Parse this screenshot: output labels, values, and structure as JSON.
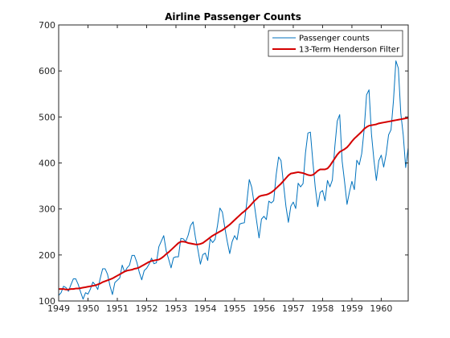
{
  "chart_data": {
    "type": "line",
    "title": "Airline Passenger Counts",
    "xlabel": "",
    "ylabel": "",
    "xlim": [
      1949,
      1960.92
    ],
    "ylim": [
      100,
      700
    ],
    "xticks": [
      1949,
      1950,
      1951,
      1952,
      1953,
      1954,
      1955,
      1956,
      1957,
      1958,
      1959,
      1960
    ],
    "yticks": [
      100,
      200,
      300,
      400,
      500,
      600,
      700
    ],
    "grid": false,
    "legend_position": "top-right",
    "x_start": 1949,
    "x_step_months": 1,
    "series": [
      {
        "name": "Passenger counts",
        "color": "#0072BD",
        "values": [
          112,
          118,
          132,
          129,
          121,
          135,
          148,
          148,
          136,
          119,
          104,
          118,
          115,
          126,
          141,
          135,
          125,
          149,
          170,
          170,
          158,
          133,
          114,
          140,
          145,
          150,
          178,
          163,
          172,
          178,
          199,
          199,
          184,
          162,
          146,
          166,
          171,
          180,
          193,
          181,
          183,
          218,
          230,
          242,
          209,
          191,
          172,
          194,
          196,
          196,
          236,
          235,
          229,
          243,
          264,
          272,
          237,
          211,
          180,
          201,
          204,
          188,
          235,
          227,
          234,
          264,
          302,
          293,
          259,
          229,
          203,
          229,
          242,
          233,
          267,
          269,
          270,
          315,
          364,
          347,
          312,
          274,
          237,
          278,
          284,
          277,
          317,
          313,
          318,
          374,
          413,
          405,
          355,
          306,
          271,
          306,
          315,
          301,
          356,
          348,
          355,
          422,
          465,
          467,
          404,
          347,
          305,
          336,
          340,
          318,
          362,
          348,
          363,
          435,
          491,
          505,
          404,
          359,
          310,
          337,
          360,
          342,
          406,
          396,
          420,
          472,
          548,
          559,
          463,
          407,
          362,
          405,
          417,
          391,
          419,
          461,
          472,
          535,
          622,
          606,
          508,
          461,
          390,
          432
        ]
      },
      {
        "name": "13-Term Henderson Filter",
        "color": "#D40000",
        "values": [
          126,
          126,
          126,
          125,
          125,
          126,
          126,
          127,
          127,
          128,
          129,
          130,
          131,
          132,
          133,
          134,
          136,
          138,
          141,
          143,
          145,
          147,
          149,
          152,
          155,
          158,
          161,
          164,
          166,
          167,
          168,
          170,
          171,
          173,
          176,
          179,
          182,
          185,
          187,
          188,
          189,
          190,
          193,
          197,
          202,
          206,
          211,
          216,
          221,
          226,
          229,
          229,
          228,
          226,
          225,
          224,
          223,
          223,
          224,
          226,
          230,
          234,
          238,
          242,
          245,
          248,
          251,
          254,
          258,
          262,
          266,
          271,
          276,
          281,
          286,
          291,
          295,
          300,
          305,
          311,
          317,
          322,
          327,
          329,
          330,
          331,
          333,
          336,
          340,
          345,
          350,
          355,
          361,
          367,
          373,
          377,
          378,
          379,
          380,
          379,
          378,
          376,
          374,
          373,
          374,
          378,
          383,
          386,
          386,
          386,
          388,
          394,
          402,
          410,
          418,
          424,
          427,
          430,
          434,
          440,
          447,
          453,
          458,
          463,
          468,
          474,
          478,
          481,
          482,
          483,
          484,
          486,
          487,
          488,
          489,
          490,
          491,
          492,
          493,
          494,
          495,
          496,
          497,
          498
        ]
      }
    ]
  }
}
